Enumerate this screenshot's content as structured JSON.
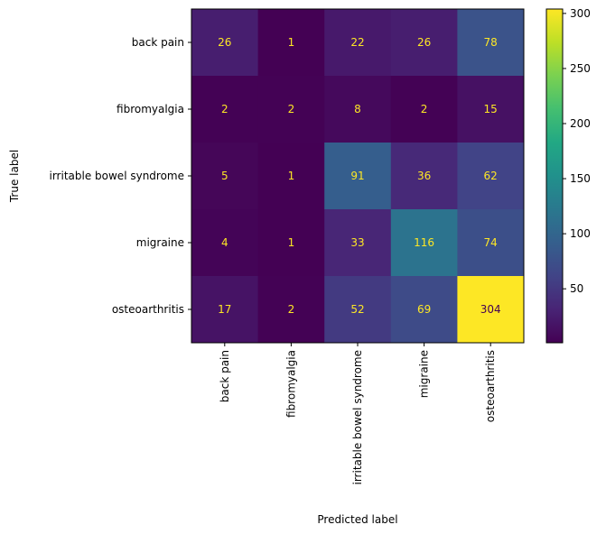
{
  "chart_data": {
    "type": "heatmap",
    "title": "",
    "xlabel": "Predicted label",
    "ylabel": "True label",
    "row_labels": [
      "back pain",
      "fibromyalgia",
      "irritable bowel syndrome",
      "migraine",
      "osteoarthritis"
    ],
    "col_labels": [
      "back pain",
      "fibromyalgia",
      "irritable bowel syndrome",
      "migraine",
      "osteoarthritis"
    ],
    "values": [
      [
        26,
        1,
        22,
        26,
        78
      ],
      [
        2,
        2,
        8,
        2,
        15
      ],
      [
        5,
        1,
        91,
        36,
        62
      ],
      [
        4,
        1,
        33,
        116,
        74
      ],
      [
        17,
        2,
        52,
        69,
        304
      ]
    ],
    "colormap": "viridis",
    "vmin": 1,
    "vmax": 304,
    "colorbar_ticks": [
      50,
      100,
      150,
      200,
      250,
      300
    ],
    "text_color_low": "#fde725",
    "text_color_high": "#440154",
    "grid": false
  }
}
